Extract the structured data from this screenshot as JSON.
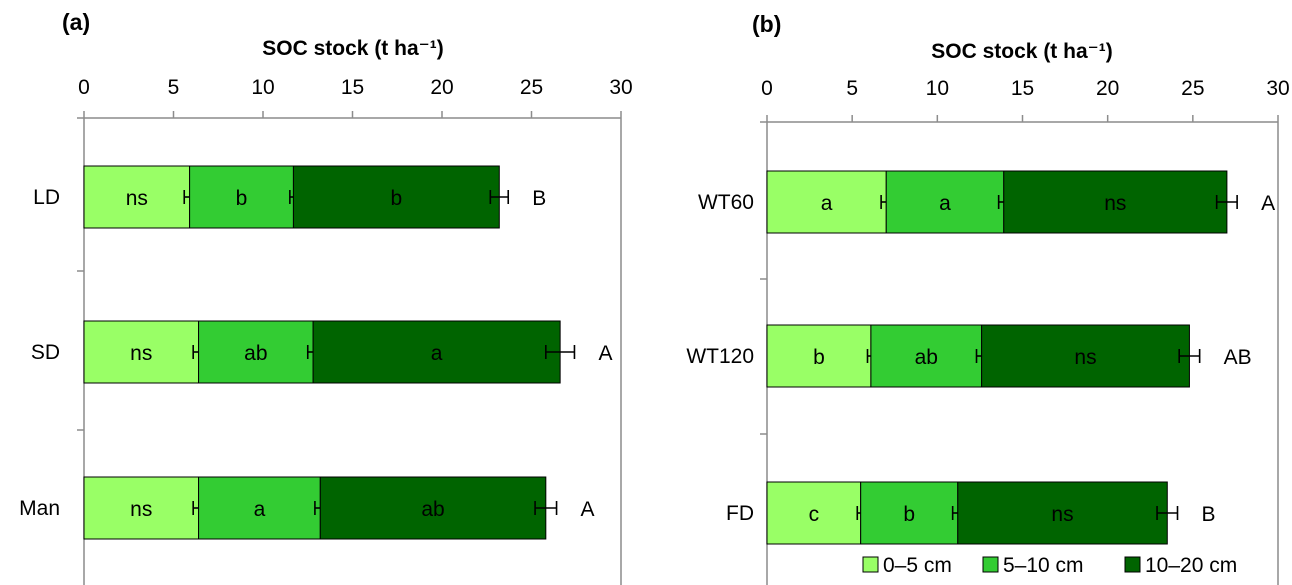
{
  "colors": {
    "seg0": "#99ff66",
    "seg1": "#33cc33",
    "seg2": "#006400"
  },
  "chart_data": [
    {
      "panel_label": "(a)",
      "type": "bar",
      "orientation": "horizontal",
      "stacked": true,
      "title": "SOC stock (t ha⁻¹)",
      "xlim": [
        0,
        30
      ],
      "xticks": [
        "0",
        "5",
        "10",
        "15",
        "20",
        "25",
        "30"
      ],
      "categories": [
        "LD",
        "SD",
        "Man"
      ],
      "series": [
        {
          "name": "0–5 cm",
          "values": [
            5.9,
            6.4,
            6.4
          ],
          "errors": [
            0.3,
            0.3,
            0.3
          ],
          "letters": [
            "ns",
            "ns",
            "ns"
          ]
        },
        {
          "name": "5–10 cm",
          "values": [
            5.8,
            6.4,
            6.8
          ],
          "errors": [
            0.2,
            0.3,
            0.3
          ],
          "letters": [
            "b",
            "ab",
            "a"
          ]
        },
        {
          "name": "10–20 cm",
          "values": [
            11.5,
            13.8,
            12.6
          ],
          "errors": [
            0.5,
            0.8,
            0.6
          ],
          "letters": [
            "b",
            "a",
            "ab"
          ]
        }
      ],
      "total_letters": [
        "B",
        "A",
        "A"
      ]
    },
    {
      "panel_label": "(b)",
      "type": "bar",
      "orientation": "horizontal",
      "stacked": true,
      "title": "SOC stock (t ha⁻¹)",
      "xlim": [
        0,
        30
      ],
      "xticks": [
        "0",
        "5",
        "10",
        "15",
        "20",
        "25",
        "30"
      ],
      "categories": [
        "WT60",
        "WT120",
        "FD"
      ],
      "series": [
        {
          "name": "0–5 cm",
          "values": [
            7.0,
            6.1,
            5.5
          ],
          "errors": [
            0.3,
            0.2,
            0.2
          ],
          "letters": [
            "a",
            "b",
            "c"
          ]
        },
        {
          "name": "5–10 cm",
          "values": [
            6.9,
            6.5,
            5.7
          ],
          "errors": [
            0.3,
            0.3,
            0.3
          ],
          "letters": [
            "a",
            "ab",
            "b"
          ]
        },
        {
          "name": "10–20 cm",
          "values": [
            13.1,
            12.2,
            12.3
          ],
          "errors": [
            0.6,
            0.6,
            0.6
          ],
          "letters": [
            "ns",
            "ns",
            "ns"
          ]
        }
      ],
      "total_letters": [
        "A",
        "AB",
        "B"
      ]
    }
  ],
  "legend": {
    "items": [
      "0–5 cm",
      "5–10 cm",
      "10–20 cm"
    ]
  }
}
